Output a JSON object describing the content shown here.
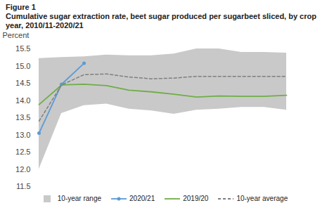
{
  "chart_data": {
    "type": "line",
    "title": "Figure 1",
    "subtitle": "Cumulative sugar extraction rate, beet sugar produced per sugarbeet sliced, by crop year, 2010/11-2020/21",
    "y_label": "Percent",
    "categories": [
      null,
      null,
      null,
      null,
      null,
      null,
      null,
      null,
      null,
      null,
      null,
      null
    ],
    "ylim": [
      11.5,
      15.5
    ],
    "yticks": [
      11.5,
      {
        "value": 12,
        "label": "12.0"
      },
      12.5,
      {
        "value": 13,
        "label": "13.0"
      },
      13.5,
      {
        "value": 14,
        "label": "14.0"
      },
      14.5,
      {
        "value": 15,
        "label": "15.0"
      },
      15.5
    ],
    "tick_labels": "y",
    "grid": false,
    "legend": "bottom",
    "series": [
      {
        "name": "10-year range",
        "type": "area",
        "color": "#c9c9c9",
        "low": [
          12.0,
          13.62,
          13.85,
          13.9,
          13.75,
          13.7,
          13.6,
          13.72,
          13.75,
          13.8,
          13.8,
          13.72
        ],
        "high": [
          15.22,
          15.25,
          15.27,
          15.32,
          15.3,
          15.3,
          15.35,
          15.5,
          15.5,
          15.4,
          15.4,
          15.38
        ]
      },
      {
        "name": "2020/21",
        "type": "line",
        "color": "#5b9bd5",
        "marker": "circle",
        "values": [
          13.05,
          14.47,
          15.08,
          null,
          null,
          null,
          null,
          null,
          null,
          null,
          null,
          null
        ]
      },
      {
        "name": "2019/20",
        "type": "line",
        "color": "#70ad47",
        "values": [
          13.88,
          14.45,
          14.47,
          14.43,
          14.3,
          14.25,
          14.18,
          14.1,
          14.13,
          14.12,
          14.12,
          14.15
        ]
      },
      {
        "name": "10-year average",
        "type": "line",
        "color": "#7f7f7f",
        "line_style": "dashed",
        "values": [
          13.4,
          14.45,
          14.75,
          14.77,
          14.68,
          14.63,
          14.65,
          14.7,
          14.7,
          14.7,
          14.7,
          14.7
        ]
      }
    ]
  }
}
